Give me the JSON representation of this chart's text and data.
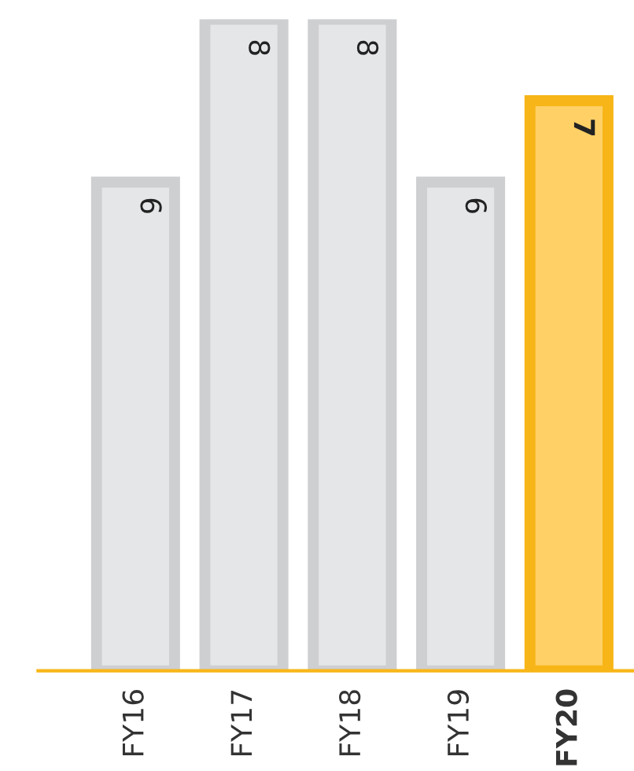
{
  "chart_data": {
    "type": "bar",
    "categories": [
      "FY16",
      "FY17",
      "FY18",
      "FY19",
      "FY20"
    ],
    "values": [
      6,
      8,
      8,
      6,
      7
    ],
    "colors": [
      "#e5e6e8",
      "#e5e6e8",
      "#e5e6e8",
      "#e5e6e8",
      "#ffd066"
    ],
    "data_labels": true,
    "grid": false,
    "legend": false
  }
}
